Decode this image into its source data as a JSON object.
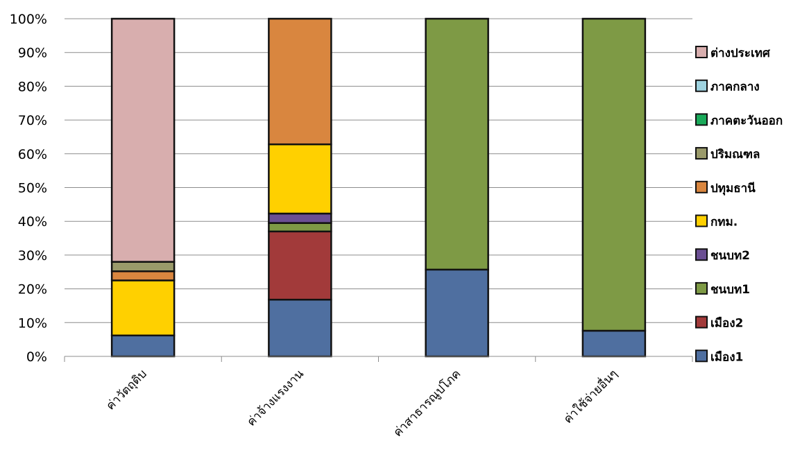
{
  "chart_data": {
    "type": "bar",
    "stacked": true,
    "percent": true,
    "categories": [
      "ค่าวัตถุดิบ",
      "ค่าจ้างแรงงาน",
      "ค่าสาธารณูปโภค",
      "ค่าใช้จ่ายอื่นๆ"
    ],
    "ylim": [
      0,
      100
    ],
    "yticks": [
      "0%",
      "10%",
      "20%",
      "30%",
      "40%",
      "50%",
      "60%",
      "70%",
      "80%",
      "90%",
      "100%"
    ],
    "grid": true,
    "legend_position": "right",
    "series": [
      {
        "name": "เมือง1",
        "color": "#4F6FA0",
        "values": [
          6.2,
          16.8,
          25.7,
          7.6
        ]
      },
      {
        "name": "เมือง2",
        "color": "#A23A3A",
        "values": [
          0,
          20.2,
          0,
          0
        ]
      },
      {
        "name": "ชนบท1",
        "color": "#7E9A45",
        "values": [
          0,
          2.5,
          74.3,
          92.4
        ]
      },
      {
        "name": "ชนบท2",
        "color": "#6B4F93",
        "values": [
          0,
          2.8,
          0,
          0
        ]
      },
      {
        "name": "กทม.",
        "color": "#FFD000",
        "values": [
          16.3,
          20.5,
          0,
          0
        ]
      },
      {
        "name": "ปทุมธานี",
        "color": "#D9863F",
        "values": [
          2.7,
          37.2,
          0,
          0
        ]
      },
      {
        "name": "ปริมณฑล",
        "color": "#9A9A6A",
        "values": [
          2.8,
          0,
          0,
          0
        ]
      },
      {
        "name": "ภาคตะวันออก",
        "color": "#1AAA5A",
        "values": [
          0,
          0,
          0,
          0
        ]
      },
      {
        "name": "ภาคกลาง",
        "color": "#9FD3E0",
        "values": [
          0,
          0,
          0,
          0
        ]
      },
      {
        "name": "ต่างประเทศ",
        "color": "#D8AEAE",
        "values": [
          72.0,
          0,
          0,
          0
        ]
      }
    ]
  }
}
